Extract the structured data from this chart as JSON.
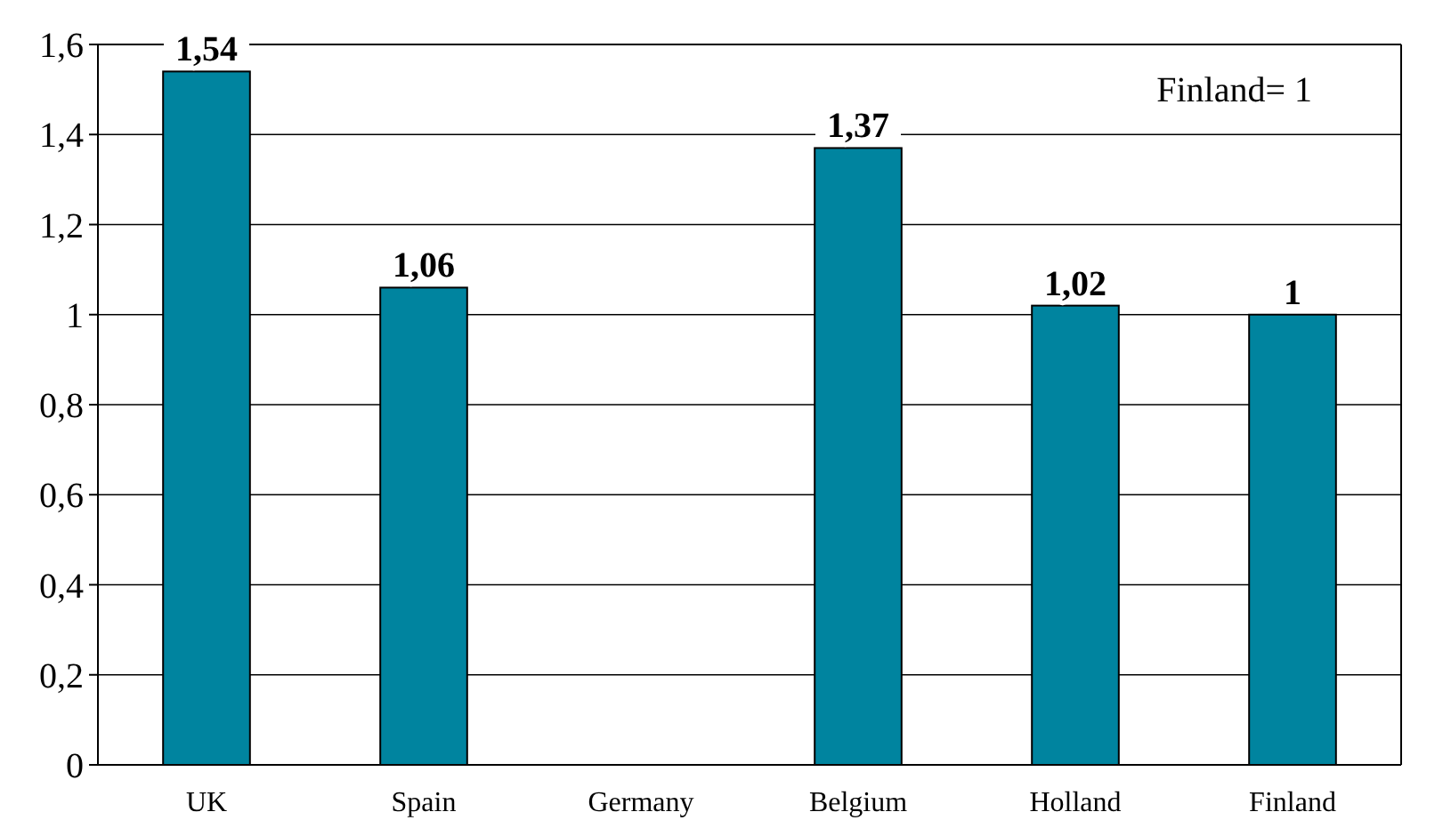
{
  "chart_data": {
    "type": "bar",
    "categories": [
      "UK",
      "Spain",
      "Germany",
      "Belgium",
      "Holland",
      "Finland"
    ],
    "values": [
      1.54,
      1.06,
      null,
      1.37,
      1.02,
      1
    ],
    "value_labels": [
      "1,54",
      "1,06",
      null,
      "1,37",
      "1,02",
      "1"
    ],
    "color": "#00849f",
    "ylim": [
      0,
      1.6
    ],
    "yticks": [
      0,
      {
        "value": 0.2,
        "label": "0,2"
      },
      {
        "value": 0.4,
        "label": "0,4"
      },
      {
        "value": 0.6,
        "label": "0,6"
      },
      {
        "value": 0.8,
        "label": "0,8"
      },
      1,
      {
        "value": 1.2,
        "label": "1,2"
      },
      {
        "value": 1.4,
        "label": "1,4"
      },
      {
        "value": 1.6,
        "label": "1,6"
      }
    ],
    "grid": "y",
    "annotations": [
      "Finland= 1"
    ]
  }
}
